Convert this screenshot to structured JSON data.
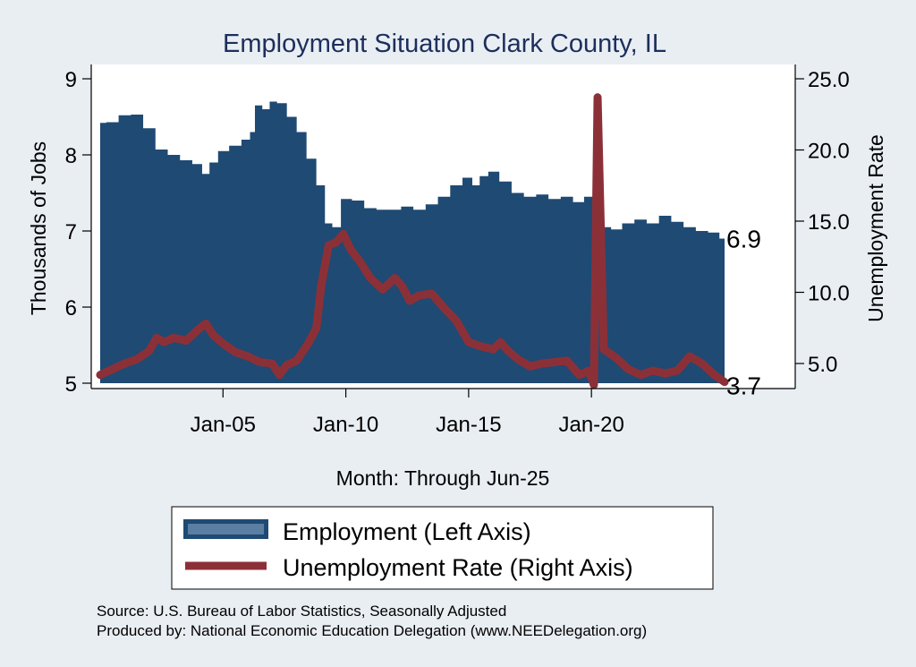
{
  "chart_data": {
    "type": "area+line",
    "title": "Employment Situation Clark  County, IL",
    "xlabel": "Month: Through Jun-25",
    "ylabel_left": "Thousands of Jobs",
    "ylabel_right": "Unemployment Rate",
    "x_range": [
      2000.0,
      2025.42
    ],
    "x_ticks": [
      {
        "x": 2005,
        "label": "Jan-05"
      },
      {
        "x": 2010,
        "label": "Jan-10"
      },
      {
        "x": 2015,
        "label": "Jan-15"
      },
      {
        "x": 2020,
        "label": "Jan-20"
      }
    ],
    "ylim_left": [
      5,
      9
    ],
    "yticks_left": [
      "5",
      "6",
      "7",
      "8",
      "9"
    ],
    "ylim_right": [
      3.3,
      25.0
    ],
    "yticks_right": [
      {
        "v": 5,
        "label": "5.0"
      },
      {
        "v": 10,
        "label": "10.0"
      },
      {
        "v": 15,
        "label": "15.0"
      },
      {
        "v": 20,
        "label": "20.0"
      },
      {
        "v": 25,
        "label": "25.0"
      }
    ],
    "series": [
      {
        "name": "Employment (Left Axis)",
        "axis": "left",
        "style": "area",
        "color": "#1f4a73",
        "points": [
          [
            2000.0,
            8.42
          ],
          [
            2000.5,
            8.43
          ],
          [
            2001.0,
            8.52
          ],
          [
            2001.5,
            8.53
          ],
          [
            2002.0,
            8.35
          ],
          [
            2002.5,
            8.07
          ],
          [
            2003.0,
            8.0
          ],
          [
            2003.5,
            7.93
          ],
          [
            2004.0,
            7.88
          ],
          [
            2004.3,
            7.75
          ],
          [
            2004.6,
            7.9
          ],
          [
            2005.0,
            8.05
          ],
          [
            2005.5,
            8.12
          ],
          [
            2006.0,
            8.2
          ],
          [
            2006.2,
            8.3
          ],
          [
            2006.4,
            8.65
          ],
          [
            2006.8,
            8.6
          ],
          [
            2007.0,
            8.7
          ],
          [
            2007.4,
            8.68
          ],
          [
            2007.8,
            8.5
          ],
          [
            2008.2,
            8.3
          ],
          [
            2008.6,
            7.95
          ],
          [
            2009.0,
            7.6
          ],
          [
            2009.3,
            7.1
          ],
          [
            2009.6,
            7.05
          ],
          [
            2010.0,
            7.42
          ],
          [
            2010.5,
            7.4
          ],
          [
            2011.0,
            7.3
          ],
          [
            2011.5,
            7.28
          ],
          [
            2012.0,
            7.28
          ],
          [
            2012.5,
            7.32
          ],
          [
            2013.0,
            7.28
          ],
          [
            2013.5,
            7.35
          ],
          [
            2014.0,
            7.45
          ],
          [
            2014.5,
            7.6
          ],
          [
            2015.0,
            7.7
          ],
          [
            2015.3,
            7.6
          ],
          [
            2015.6,
            7.72
          ],
          [
            2016.0,
            7.78
          ],
          [
            2016.5,
            7.65
          ],
          [
            2017.0,
            7.5
          ],
          [
            2017.5,
            7.45
          ],
          [
            2018.0,
            7.48
          ],
          [
            2018.5,
            7.42
          ],
          [
            2019.0,
            7.45
          ],
          [
            2019.5,
            7.38
          ],
          [
            2019.9,
            7.45
          ],
          [
            2020.3,
            6.7
          ],
          [
            2020.6,
            7.05
          ],
          [
            2021.0,
            7.02
          ],
          [
            2021.5,
            7.1
          ],
          [
            2022.0,
            7.15
          ],
          [
            2022.5,
            7.1
          ],
          [
            2023.0,
            7.2
          ],
          [
            2023.5,
            7.12
          ],
          [
            2024.0,
            7.05
          ],
          [
            2024.5,
            7.0
          ],
          [
            2025.0,
            6.98
          ],
          [
            2025.42,
            6.9
          ]
        ]
      },
      {
        "name": "Unemployment Rate (Right Axis)",
        "axis": "right",
        "style": "line",
        "color": "#8c3038",
        "points": [
          [
            2000.0,
            4.2
          ],
          [
            2000.5,
            4.6
          ],
          [
            2001.0,
            5.0
          ],
          [
            2001.5,
            5.3
          ],
          [
            2002.0,
            5.9
          ],
          [
            2002.3,
            6.8
          ],
          [
            2002.6,
            6.5
          ],
          [
            2003.0,
            6.8
          ],
          [
            2003.5,
            6.6
          ],
          [
            2004.0,
            7.4
          ],
          [
            2004.3,
            7.8
          ],
          [
            2004.6,
            7.0
          ],
          [
            2005.0,
            6.4
          ],
          [
            2005.5,
            5.8
          ],
          [
            2006.0,
            5.5
          ],
          [
            2006.5,
            5.1
          ],
          [
            2007.0,
            5.0
          ],
          [
            2007.3,
            4.2
          ],
          [
            2007.6,
            4.9
          ],
          [
            2008.0,
            5.2
          ],
          [
            2008.5,
            6.5
          ],
          [
            2008.8,
            7.5
          ],
          [
            2009.0,
            10.5
          ],
          [
            2009.3,
            13.3
          ],
          [
            2009.6,
            13.5
          ],
          [
            2009.9,
            14.1
          ],
          [
            2010.2,
            13.0
          ],
          [
            2010.6,
            12.1
          ],
          [
            2011.0,
            11.0
          ],
          [
            2011.5,
            10.2
          ],
          [
            2012.0,
            11.0
          ],
          [
            2012.3,
            10.4
          ],
          [
            2012.6,
            9.4
          ],
          [
            2013.0,
            9.8
          ],
          [
            2013.5,
            9.9
          ],
          [
            2014.0,
            8.9
          ],
          [
            2014.5,
            8.0
          ],
          [
            2015.0,
            6.5
          ],
          [
            2015.5,
            6.2
          ],
          [
            2016.0,
            6.0
          ],
          [
            2016.3,
            6.5
          ],
          [
            2016.6,
            5.9
          ],
          [
            2017.0,
            5.3
          ],
          [
            2017.5,
            4.8
          ],
          [
            2018.0,
            5.0
          ],
          [
            2018.5,
            5.1
          ],
          [
            2019.0,
            5.2
          ],
          [
            2019.5,
            4.2
          ],
          [
            2019.9,
            4.5
          ],
          [
            2020.1,
            3.5
          ],
          [
            2020.25,
            23.7
          ],
          [
            2020.5,
            6.0
          ],
          [
            2021.0,
            5.4
          ],
          [
            2021.5,
            4.6
          ],
          [
            2022.0,
            4.2
          ],
          [
            2022.5,
            4.5
          ],
          [
            2023.0,
            4.3
          ],
          [
            2023.5,
            4.5
          ],
          [
            2024.0,
            5.5
          ],
          [
            2024.5,
            5.0
          ],
          [
            2025.0,
            4.2
          ],
          [
            2025.42,
            3.7
          ]
        ]
      }
    ],
    "end_labels": {
      "employment": "6.9",
      "unemployment": "3.7"
    },
    "legend": {
      "position": "bottom",
      "items": [
        "Employment (Left Axis)",
        "Unemployment Rate (Right Axis)"
      ]
    }
  },
  "source_note": "Source: U.S. Bureau of Labor Statistics, Seasonally Adjusted",
  "produced_note": "Produced by: National Economic Education Delegation (www.NEEDelegation.org)",
  "colors": {
    "background": "#e9eef3",
    "plot_background": "#ffffff",
    "employment": "#1f4a73",
    "unemployment": "#8c3038",
    "title": "#1c2f5c"
  }
}
